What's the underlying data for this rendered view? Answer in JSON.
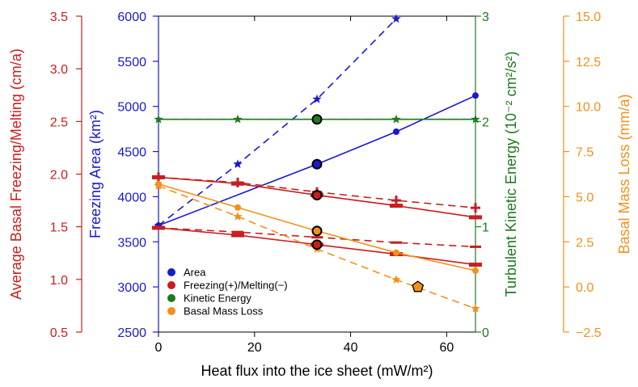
{
  "chart_data": {
    "type": "line",
    "xlabel": "Heat flux into the ice sheet (mW/m²)",
    "xlim": [
      0,
      66
    ],
    "xticks": [
      0,
      20,
      40,
      60
    ],
    "axes": {
      "area": {
        "label": "Freezing Area (km²)",
        "lim": [
          2500,
          6000
        ],
        "ticks": [
          2500,
          3000,
          3500,
          4000,
          4500,
          5000,
          5500,
          6000
        ],
        "color": "#1a1acc"
      },
      "freeze": {
        "label": "Average Basal Freezing/Melting (cm/a)",
        "lim": [
          0.5,
          3.5
        ],
        "ticks": [
          0.5,
          1.0,
          1.5,
          2.0,
          2.5,
          3.0,
          3.5
        ],
        "color": "#c81e1e"
      },
      "ke": {
        "label": "Turbulent Kinetic Energy (10⁻² cm²/s²)",
        "lim": [
          0,
          3
        ],
        "ticks": [
          0,
          1,
          2,
          3
        ],
        "color": "#1e7a1e"
      },
      "bml": {
        "label": "Basal Mass Loss (mm/a)",
        "lim": [
          -2.5,
          15.0
        ],
        "ticks": [
          -2.5,
          0.0,
          2.5,
          5.0,
          7.5,
          10.0,
          12.5,
          15.0
        ],
        "color": "#f39019"
      }
    },
    "series": [
      {
        "key": "area_solid",
        "axis": "area",
        "style": "solid",
        "marker": "circle",
        "x": [
          0,
          33,
          49.5,
          66
        ],
        "y": [
          3680,
          4360,
          4720,
          5120
        ]
      },
      {
        "key": "area_dash",
        "axis": "area",
        "style": "dash",
        "marker": "star",
        "x": [
          0,
          16.5,
          33,
          49.5
        ],
        "y": [
          3680,
          4360,
          5080,
          5970
        ]
      },
      {
        "key": "freeze_a_solid",
        "axis": "freeze",
        "style": "solid",
        "marker": "bar",
        "x": [
          0,
          16.5,
          33,
          49.5,
          66
        ],
        "y": [
          1.97,
          1.91,
          1.8,
          1.7,
          1.59
        ]
      },
      {
        "key": "freeze_a_dash",
        "axis": "freeze",
        "style": "dash",
        "marker": "plus",
        "x": [
          0,
          16.5,
          33,
          49.5,
          66
        ],
        "y": [
          1.97,
          1.92,
          1.83,
          1.75,
          1.68
        ]
      },
      {
        "key": "freeze_b_solid",
        "axis": "freeze",
        "style": "solid",
        "marker": "bar",
        "x": [
          0,
          16.5,
          33,
          49.5,
          66
        ],
        "y": [
          1.49,
          1.42,
          1.33,
          1.24,
          1.14
        ]
      },
      {
        "key": "freeze_b_dash",
        "axis": "freeze",
        "style": "dash",
        "marker": "minus",
        "x": [
          0,
          16.5,
          33,
          49.5,
          66
        ],
        "y": [
          1.49,
          1.45,
          1.4,
          1.35,
          1.31
        ]
      },
      {
        "key": "ke_solid",
        "axis": "ke",
        "style": "solid",
        "marker": "star",
        "x": [
          0,
          16.5,
          33,
          49.5,
          66
        ],
        "y": [
          2.02,
          2.02,
          2.02,
          2.02,
          2.02
        ]
      },
      {
        "key": "ke_dash",
        "axis": "ke",
        "style": "dash",
        "marker": "none",
        "x": [
          0,
          66
        ],
        "y": [
          2.02,
          2.02
        ]
      },
      {
        "key": "bml_solid",
        "axis": "bml",
        "style": "solid",
        "marker": "circle",
        "x": [
          0,
          16.5,
          33,
          49.5,
          66
        ],
        "y": [
          5.7,
          4.4,
          3.1,
          1.9,
          0.9
        ]
      },
      {
        "key": "bml_dash",
        "axis": "bml",
        "style": "dash",
        "marker": "star",
        "x": [
          0,
          16.5,
          33,
          49.5,
          66
        ],
        "y": [
          5.6,
          3.9,
          2.1,
          0.4,
          -1.2
        ]
      }
    ],
    "highlight_points": [
      {
        "axis": "area",
        "x": 33,
        "y": 4360,
        "marker": "circle",
        "color": "#1a1acc"
      },
      {
        "axis": "freeze",
        "x": 33,
        "y": 1.8,
        "marker": "circle",
        "color": "#c81e1e"
      },
      {
        "axis": "freeze",
        "x": 33,
        "y": 1.33,
        "marker": "circle",
        "color": "#c81e1e"
      },
      {
        "axis": "ke",
        "x": 33,
        "y": 2.02,
        "marker": "circle",
        "color": "#1e7a1e"
      },
      {
        "axis": "bml",
        "x": 33,
        "y": 3.1,
        "marker": "circle",
        "color": "#f39019"
      },
      {
        "axis": "bml",
        "x": 54,
        "y": 0.0,
        "marker": "pentagon",
        "color": "#f39019"
      }
    ],
    "legend": {
      "placement": "bottom-left",
      "entries": [
        {
          "label": "Area",
          "color": "#1a1acc"
        },
        {
          "label": "Freezing(+)/Melting(−)",
          "color": "#c81e1e"
        },
        {
          "label": "Kinetic Energy",
          "color": "#1e7a1e"
        },
        {
          "label": "Basal Mass Loss",
          "color": "#f39019"
        }
      ]
    }
  }
}
